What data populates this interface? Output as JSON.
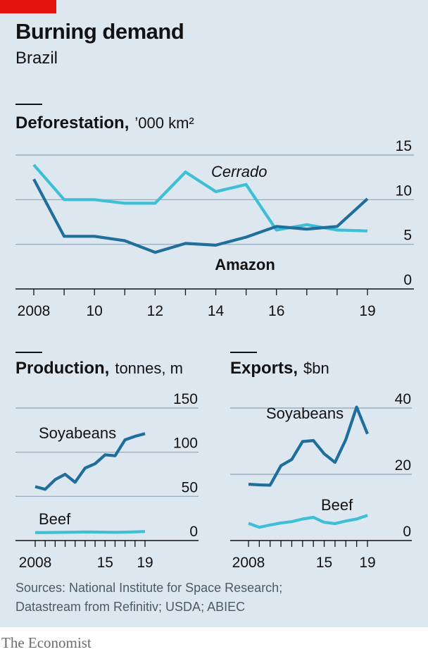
{
  "header": {
    "title": "Burning demand",
    "subtitle": "Brazil"
  },
  "footer": {
    "source_line1": "Sources: National Institute for Space Research;",
    "source_line2": "Datastream from Refinitiv; USDA; ABIEC",
    "brand": "The Economist"
  },
  "colors": {
    "dark_series": "#1f6e9c",
    "light_series": "#3ebfd6",
    "grid": "#8fa3b5",
    "axis": "#121212",
    "background": "#dde7f0",
    "flag": "#e3120b"
  },
  "chart_data": [
    {
      "type": "line",
      "title": "Deforestation,",
      "unit": "’000 km²",
      "x": [
        2008,
        2009,
        2010,
        2011,
        2012,
        2013,
        2014,
        2015,
        2016,
        2017,
        2018,
        2019
      ],
      "x_tick_labels": [
        "2008",
        "10",
        "12",
        "14",
        "16",
        "19"
      ],
      "x_tick_values": [
        2008,
        2010,
        2012,
        2014,
        2016,
        2019
      ],
      "ylim": [
        0,
        15
      ],
      "y_ticks": [
        15,
        10,
        5,
        0
      ],
      "grid": true,
      "series": [
        {
          "name": "Cerrado",
          "label_style": "italic",
          "color": "#3ebfd6",
          "values": [
            13.9,
            10.0,
            10.0,
            9.6,
            9.6,
            13.1,
            10.9,
            11.7,
            6.6,
            7.2,
            6.6,
            6.5
          ]
        },
        {
          "name": "Amazon",
          "label_style": "bold",
          "color": "#1f6e9c",
          "values": [
            12.3,
            5.9,
            5.9,
            5.4,
            4.1,
            5.1,
            4.9,
            5.8,
            7.0,
            6.7,
            7.0,
            10.1
          ]
        }
      ]
    },
    {
      "type": "line",
      "title": "Production,",
      "unit": "tonnes, m",
      "x": [
        2008,
        2009,
        2010,
        2011,
        2012,
        2013,
        2014,
        2015,
        2016,
        2017,
        2018,
        2019
      ],
      "x_tick_labels": [
        "2008",
        "15",
        "19"
      ],
      "x_tick_values": [
        2008,
        2015,
        2019
      ],
      "ylim": [
        0,
        150
      ],
      "y_ticks": [
        150,
        100,
        50,
        0
      ],
      "grid": true,
      "series": [
        {
          "name": "Soyabeans",
          "color": "#1f6e9c",
          "values": [
            61,
            58,
            69,
            75,
            66,
            82,
            87,
            97,
            96,
            114,
            118,
            121
          ]
        },
        {
          "name": "Beef",
          "color": "#3ebfd6",
          "values": [
            9.0,
            9.0,
            9.2,
            9.3,
            9.5,
            9.7,
            9.6,
            9.4,
            9.3,
            9.5,
            9.8,
            10.2
          ]
        }
      ]
    },
    {
      "type": "line",
      "title": "Exports,",
      "unit": "$bn",
      "x": [
        2008,
        2009,
        2010,
        2011,
        2012,
        2013,
        2014,
        2015,
        2016,
        2017,
        2018,
        2019
      ],
      "x_tick_labels": [
        "2008",
        "15",
        "19"
      ],
      "x_tick_values": [
        2008,
        2015,
        2019
      ],
      "ylim": [
        0,
        40
      ],
      "y_ticks": [
        40,
        20,
        0
      ],
      "grid": true,
      "series": [
        {
          "name": "Soyabeans",
          "color": "#1f6e9c",
          "values": [
            17.0,
            16.8,
            16.7,
            22.6,
            24.5,
            29.9,
            30.2,
            26.2,
            23.6,
            30.5,
            40.3,
            32.2
          ]
        },
        {
          "name": "Beef",
          "color": "#3ebfd6",
          "values": [
            5.2,
            4.0,
            4.7,
            5.3,
            5.7,
            6.5,
            7.0,
            5.5,
            5.1,
            5.9,
            6.5,
            7.6
          ]
        }
      ]
    }
  ]
}
